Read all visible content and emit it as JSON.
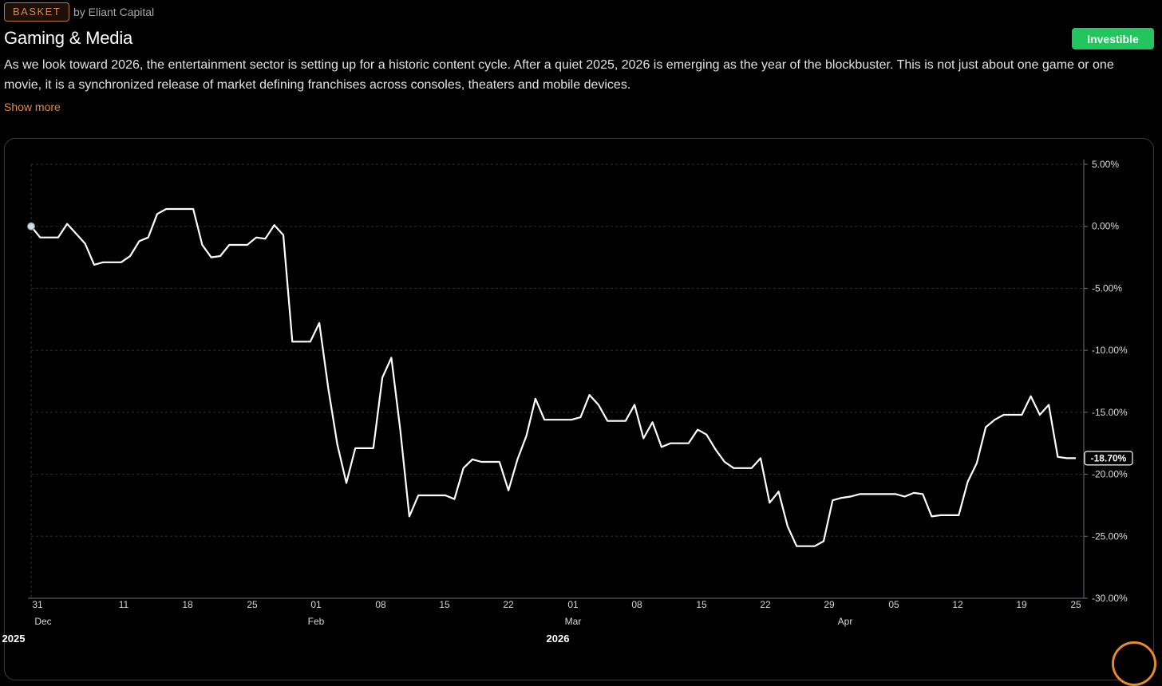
{
  "header": {
    "badge": "BASKET",
    "byline": "by Eliant Capital",
    "title": "Gaming & Media",
    "action_label": "Investible",
    "description": "As we look toward 2026, the entertainment sector is setting up for a historic content cycle. After a quiet 2025, 2026 is emerging as the year of the blockbuster. This is not just about one game or one movie, it is a synchronized release of market defining franchises across consoles, theaters and mobile devices.",
    "show_more": "Show more"
  },
  "colors": {
    "accent": "#e08a45",
    "investible": "#22c55e",
    "line": "#ffffff",
    "background": "#000000"
  },
  "chart_data": {
    "type": "line",
    "title": "",
    "xlabel": "",
    "ylabel": "",
    "ylim": [
      -30,
      5
    ],
    "y_ticks": [
      "5.00%",
      "0.00%",
      "-5.00%",
      "-10.00%",
      "-15.00%",
      "-20.00%",
      "-25.00%",
      "-30.00%"
    ],
    "x_day_ticks": [
      "31",
      "11",
      "18",
      "25",
      "01",
      "08",
      "15",
      "22",
      "01",
      "08",
      "15",
      "22",
      "29",
      "05",
      "12",
      "19",
      "25"
    ],
    "x_month_labels": [
      "Dec",
      "Feb",
      "Mar",
      "Apr"
    ],
    "x_year_labels": [
      "2025",
      "2026"
    ],
    "last_value_label": "-18.70%",
    "series": [
      {
        "name": "Gaming & Media",
        "values": [
          0,
          -0.9,
          -0.9,
          -0.9,
          0.2,
          -0.6,
          -1.4,
          -3.1,
          -2.9,
          -2.9,
          -2.9,
          -2.4,
          -1.2,
          -0.9,
          1.0,
          1.4,
          1.4,
          1.4,
          1.4,
          -1.5,
          -2.5,
          -2.4,
          -1.5,
          -1.5,
          -1.5,
          -0.9,
          -1.0,
          0.1,
          -0.7,
          -9.3,
          -9.3,
          -9.3,
          -7.8,
          -13.1,
          -17.6,
          -20.7,
          -17.9,
          -17.9,
          -17.9,
          -12.2,
          -10.6,
          -16.5,
          -23.4,
          -21.7,
          -21.7,
          -21.7,
          -21.7,
          -22.0,
          -19.5,
          -18.8,
          -19.0,
          -19.0,
          -19.0,
          -21.3,
          -18.8,
          -16.9,
          -13.9,
          -15.6,
          -15.6,
          -15.6,
          -15.6,
          -15.4,
          -13.6,
          -14.4,
          -15.7,
          -15.7,
          -15.7,
          -14.4,
          -17.1,
          -15.8,
          -17.8,
          -17.5,
          -17.5,
          -17.5,
          -16.4,
          -16.8,
          -18.0,
          -19.0,
          -19.5,
          -19.5,
          -19.5,
          -18.7,
          -22.3,
          -21.4,
          -24.2,
          -25.8,
          -25.8,
          -25.8,
          -25.4,
          -22.1,
          -21.9,
          -21.8,
          -21.6,
          -21.6,
          -21.6,
          -21.6,
          -21.6,
          -21.8,
          -21.5,
          -21.6,
          -23.4,
          -23.3,
          -23.3,
          -23.3,
          -20.6,
          -19.1,
          -16.2,
          -15.6,
          -15.2,
          -15.2,
          -15.2,
          -13.7,
          -15.2,
          -14.4,
          -18.6,
          -18.7,
          -18.7
        ]
      }
    ]
  }
}
